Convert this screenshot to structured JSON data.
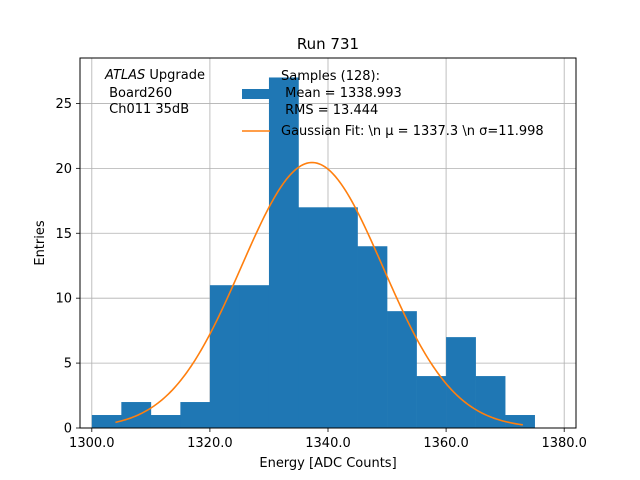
{
  "chart_data": {
    "type": "bar",
    "title": "Run 731",
    "xlabel": "Energy [ADC Counts]",
    "ylabel": "Entries",
    "xlim": [
      1298,
      1382
    ],
    "ylim": [
      0,
      28.5
    ],
    "xticks": [
      1300,
      1320,
      1340,
      1360,
      1380
    ],
    "xtick_labels": [
      "1300.0",
      "1320.0",
      "1340.0",
      "1360.0",
      "1380.0"
    ],
    "yticks": [
      0,
      5,
      10,
      15,
      20,
      25
    ],
    "ytick_labels": [
      "0",
      "5",
      "10",
      "15",
      "20",
      "25"
    ],
    "grid": true,
    "bin_width": 5,
    "bins": [
      {
        "x0": 1300,
        "count": 1
      },
      {
        "x0": 1305,
        "count": 2
      },
      {
        "x0": 1310,
        "count": 1
      },
      {
        "x0": 1315,
        "count": 2
      },
      {
        "x0": 1320,
        "count": 11
      },
      {
        "x0": 1325,
        "count": 11
      },
      {
        "x0": 1330,
        "count": 27
      },
      {
        "x0": 1335,
        "count": 17
      },
      {
        "x0": 1340,
        "count": 17
      },
      {
        "x0": 1345,
        "count": 14
      },
      {
        "x0": 1350,
        "count": 9
      },
      {
        "x0": 1355,
        "count": 4
      },
      {
        "x0": 1360,
        "count": 7
      },
      {
        "x0": 1365,
        "count": 4
      },
      {
        "x0": 1370,
        "count": 1
      }
    ],
    "fit": {
      "mu": 1337.3,
      "sigma": 11.998,
      "amplitude": 20.45,
      "x_range": [
        1304,
        1373
      ]
    },
    "legend": {
      "placement": "top-right",
      "hist_label_lines": [
        "Samples (128):",
        " Mean = 1338.993",
        " RMS = 13.444"
      ],
      "fit_label": "Gaussian Fit: \\n μ = 1337.3 \\n σ=11.998"
    },
    "annotation_lines": [
      "ATLAS Upgrade",
      " Board260",
      " Ch011 35dB"
    ],
    "colors": {
      "bar": "#1f77b4",
      "fit": "#ff7f0e",
      "grid": "#b0b0b0"
    }
  }
}
